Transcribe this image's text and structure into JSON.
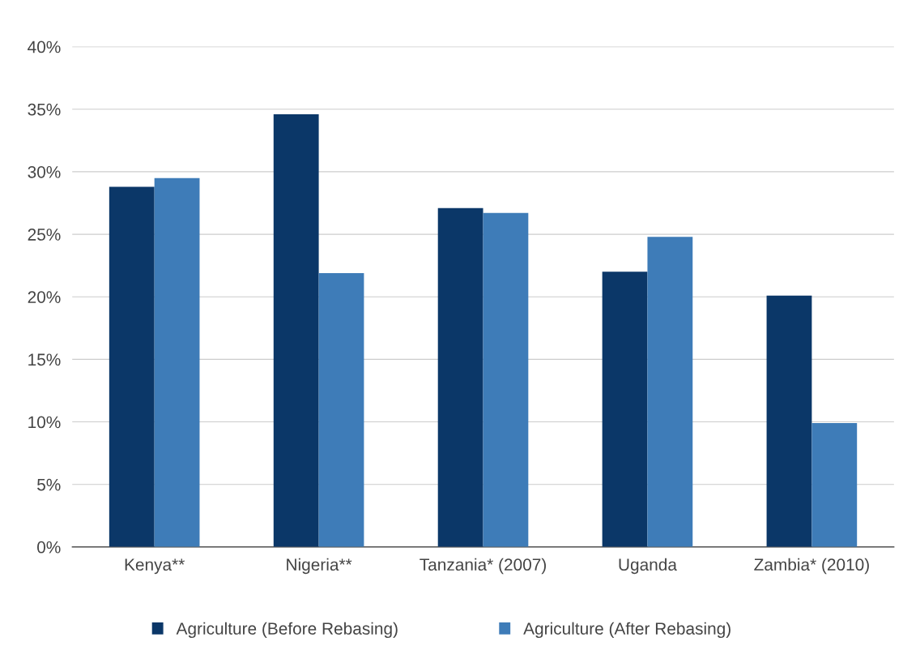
{
  "chart_data": {
    "type": "bar",
    "categories": [
      "Kenya**",
      "Nigeria**",
      "Tanzania* (2007)",
      "Uganda",
      "Zambia* (2010)"
    ],
    "series": [
      {
        "name": "Agriculture (Before Rebasing)",
        "color": "#0b3768",
        "values": [
          28.8,
          34.6,
          27.1,
          22.0,
          20.1
        ]
      },
      {
        "name": "Agriculture (After Rebasing)",
        "color": "#3e7cb8",
        "values": [
          29.5,
          21.9,
          26.7,
          24.8,
          9.9
        ]
      }
    ],
    "ylim": [
      0,
      40
    ],
    "yticks": [
      {
        "value": 0,
        "label": "0%"
      },
      {
        "value": 5,
        "label": "5%"
      },
      {
        "value": 10,
        "label": "10%"
      },
      {
        "value": 15,
        "label": "15%"
      },
      {
        "value": 20,
        "label": "20%"
      },
      {
        "value": 25,
        "label": "25%"
      },
      {
        "value": 30,
        "label": "30%"
      },
      {
        "value": 35,
        "label": "35%"
      },
      {
        "value": 40,
        "label": "40%"
      }
    ],
    "grid": "y",
    "legend": "bottom"
  }
}
